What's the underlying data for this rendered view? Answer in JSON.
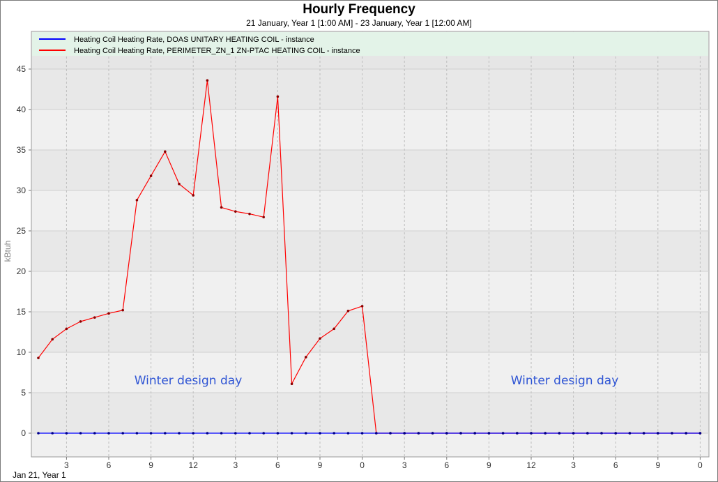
{
  "chart_data": {
    "type": "line",
    "title": "Hourly Frequency",
    "subtitle": "21 January, Year 1 [1:00 AM] - 23 January, Year 1 [12:00 AM]",
    "ylabel": "kBtuh",
    "ylim": [
      0,
      45
    ],
    "yticks": [
      0,
      5,
      10,
      15,
      20,
      25,
      30,
      35,
      40,
      45
    ],
    "x_tick_labels": [
      "3",
      "6",
      "9",
      "12",
      "3",
      "6",
      "9",
      "0",
      "3",
      "6",
      "9",
      "12",
      "3",
      "6",
      "9",
      "0"
    ],
    "x_start_label": "Jan 21, Year 1",
    "grid": true,
    "legend_position": "top",
    "series": [
      {
        "name": "Heating Coil Heating Rate, DOAS UNITARY HEATING COIL - instance",
        "color": "#0000ff",
        "values": [
          0,
          0,
          0,
          0,
          0,
          0,
          0,
          0,
          0,
          0,
          0,
          0,
          0,
          0,
          0,
          0,
          0,
          0,
          0,
          0,
          0,
          0,
          0,
          0,
          0,
          0,
          0,
          0,
          0,
          0,
          0,
          0,
          0,
          0,
          0,
          0,
          0,
          0,
          0,
          0,
          0,
          0,
          0,
          0,
          0,
          0,
          0,
          0
        ]
      },
      {
        "name": "Heating Coil Heating Rate, PERIMETER_ZN_1 ZN-PTAC HEATING COIL - instance",
        "color": "#ff0000",
        "values": [
          9.3,
          11.6,
          12.9,
          13.8,
          14.3,
          14.8,
          15.2,
          28.8,
          31.8,
          34.8,
          30.8,
          29.4,
          43.6,
          27.9,
          27.4,
          27.1,
          26.7,
          41.6,
          6.1,
          9.4,
          11.7,
          12.9,
          15.1,
          15.7,
          0,
          0,
          0,
          0,
          0,
          0,
          0,
          0,
          0,
          0,
          0,
          0,
          0,
          0,
          0,
          0,
          0,
          0,
          0,
          0,
          0,
          0,
          0,
          0
        ]
      }
    ],
    "annotations": [
      "Winter design day",
      "Winter design day"
    ]
  }
}
